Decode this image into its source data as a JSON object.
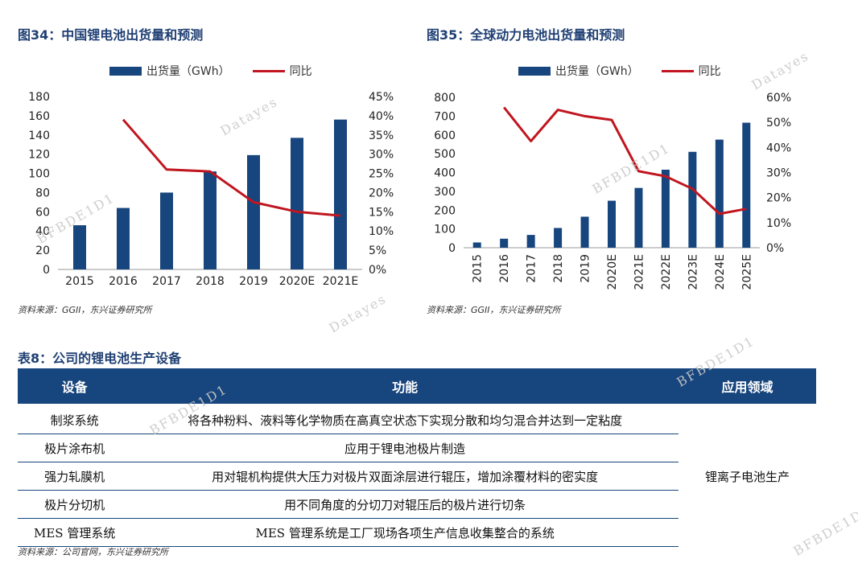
{
  "left_figure": {
    "title": "图34：中国锂电池出货量和预测",
    "legend_bar": "出货量（GWh）",
    "legend_line": "同比",
    "source": "资料来源：GGII，东兴证券研究所"
  },
  "right_figure": {
    "title": "图35：全球动力电池出货量和预测",
    "legend_bar": "出货量（GWh）",
    "legend_line": "同比",
    "source": "资料来源：GGII，东兴证券研究所"
  },
  "colors": {
    "bar": "#17457d",
    "line": "#c0161f",
    "header": "#17457d"
  },
  "chart_data": [
    {
      "type": "bar",
      "categories": [
        "2015",
        "2016",
        "2017",
        "2018",
        "2019",
        "2020E",
        "2021E"
      ],
      "series": [
        {
          "name": "出货量（GWh）",
          "values": [
            46,
            64,
            80,
            102,
            119,
            137,
            156
          ]
        },
        {
          "name": "同比",
          "type": "line",
          "axis": "right",
          "values": [
            null,
            39,
            26,
            25.5,
            17.5,
            15,
            14
          ]
        }
      ],
      "ylim": [
        0,
        180
      ],
      "yticks": [
        "0",
        "20",
        "40",
        "60",
        "80",
        "100",
        "120",
        "140",
        "160",
        "180"
      ],
      "y2lim": [
        0,
        45
      ],
      "y2ticks": [
        "0%",
        "5%",
        "10%",
        "15%",
        "20%",
        "25%",
        "30%",
        "35%",
        "40%",
        "45%"
      ]
    },
    {
      "type": "bar",
      "categories": [
        "2015",
        "2016",
        "2017",
        "2018",
        "2019",
        "2020E",
        "2021E",
        "2022E",
        "2023E",
        "2024E",
        "2025E"
      ],
      "series": [
        {
          "name": "出货量（GWh）",
          "values": [
            28,
            48,
            68,
            105,
            165,
            250,
            318,
            415,
            510,
            575,
            665
          ]
        },
        {
          "name": "同比",
          "type": "line",
          "axis": "right",
          "values": [
            null,
            56,
            42.5,
            55,
            52.5,
            51,
            30.5,
            28.5,
            23.5,
            13.5,
            15.5
          ]
        }
      ],
      "ylim": [
        0,
        800
      ],
      "yticks": [
        "0",
        "100",
        "200",
        "300",
        "400",
        "500",
        "600",
        "700",
        "800"
      ],
      "y2lim": [
        0,
        60
      ],
      "y2ticks": [
        "0%",
        "10%",
        "20%",
        "30%",
        "40%",
        "50%",
        "60%"
      ]
    }
  ],
  "table": {
    "title": "表8：公司的锂电池生产设备",
    "headers": [
      "设备",
      "功能",
      "应用领域"
    ],
    "rows": [
      {
        "device": "制浆系统",
        "function": "将各种粉料、液料等化学物质在高真空状态下实现分散和均匀混合并达到一定粘度"
      },
      {
        "device": "极片涂布机",
        "function": "应用于锂电池极片制造"
      },
      {
        "device": "强力轧膜机",
        "function": "用对辊机构提供大压力对极片双面涂层进行辊压，增加涂覆材料的密实度"
      },
      {
        "device": "极片分切机",
        "function": "用不同角度的分切刀对辊压后的极片进行切条"
      },
      {
        "device": "MES 管理系统",
        "function": "MES 管理系统是工厂现场各项生产信息收集整合的系统"
      }
    ],
    "application": "锂离子电池生产",
    "source": "资料来源：公司官网，东兴证券研究所"
  },
  "watermarks": [
    "Datayes",
    "BFBDE1D1",
    "Datayes",
    "BFBDE1D1",
    "BFBDE1D1",
    "Datayes",
    "BFBDE1D1",
    "BFBDE1D1"
  ]
}
